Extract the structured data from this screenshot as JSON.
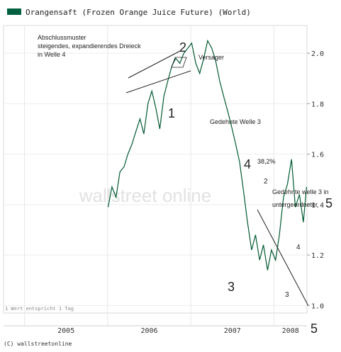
{
  "chart_data": {
    "type": "line",
    "title": "Orangensaft (Frozen Orange Juice Future) (World)",
    "legend_color": "#006040",
    "series_color": "#005a32",
    "watermark": "wallstreet online",
    "xlabel": "",
    "ylabel": "",
    "x_ticks": [
      "2005",
      "2006",
      "2007",
      "2008"
    ],
    "y_ticks": [
      "1.0",
      "1.2",
      "1.4",
      "1.6",
      "1.8",
      "2.0"
    ],
    "ylim": [
      0.97,
      2.11
    ],
    "grid": true,
    "footer_note": "1 Wert entspricht 1 Tag",
    "copyright": "(C) wallstreetonline",
    "series": [
      {
        "x": [
          "2006-01-03",
          "2006-01-20",
          "2006-02-07",
          "2006-02-24",
          "2006-03-14",
          "2006-03-31",
          "2006-04-18",
          "2006-05-05",
          "2006-05-23",
          "2006-06-09",
          "2006-06-27",
          "2006-07-14",
          "2006-08-01",
          "2006-08-18",
          "2006-09-05",
          "2006-09-22",
          "2006-10-10",
          "2006-10-27",
          "2006-11-14",
          "2006-12-01",
          "2006-12-19",
          "2007-01-05",
          "2007-01-23",
          "2007-02-09",
          "2007-02-27",
          "2007-03-16",
          "2007-04-03",
          "2007-04-20",
          "2007-05-08",
          "2007-05-25",
          "2007-06-12",
          "2007-06-29",
          "2007-07-17",
          "2007-08-03",
          "2007-08-21",
          "2007-09-07",
          "2007-09-25",
          "2007-10-12",
          "2007-10-30",
          "2007-11-16",
          "2007-12-04",
          "2007-12-21",
          "2008-01-08",
          "2008-01-25",
          "2008-02-12",
          "2008-02-29",
          "2008-03-18",
          "2008-04-04",
          "2008-04-22",
          "2008-05-09",
          "2008-05-23"
        ],
        "values": [
          1.39,
          1.47,
          1.43,
          1.53,
          1.55,
          1.6,
          1.64,
          1.69,
          1.74,
          1.68,
          1.8,
          1.85,
          1.78,
          1.7,
          1.83,
          1.89,
          1.95,
          1.98,
          1.96,
          2.0,
          2.02,
          2.04,
          1.96,
          1.92,
          1.98,
          2.05,
          2.02,
          1.97,
          1.89,
          1.83,
          1.77,
          1.71,
          1.64,
          1.57,
          1.45,
          1.33,
          1.22,
          1.28,
          1.18,
          1.24,
          1.14,
          1.22,
          1.18,
          1.28,
          1.43,
          1.48,
          1.58,
          1.39,
          1.44,
          1.33,
          1.47
        ]
      }
    ],
    "annotations": [
      "Abschlussmuster",
      "steigendes, expandierendes Dreieck",
      "in Welle 4",
      "Versager",
      "Gedehnte Welle 3",
      "38,2%",
      "Gedehnte welle 3 in",
      "untergeordneter",
      "1",
      "2",
      "3",
      "4",
      "5",
      "2",
      "4",
      "3",
      "5"
    ]
  }
}
